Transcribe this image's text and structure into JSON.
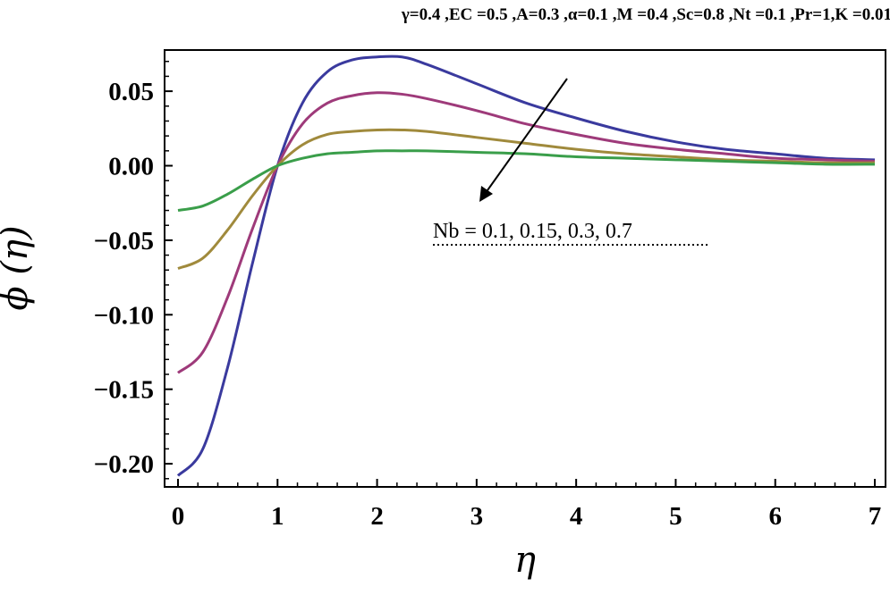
{
  "chart_data": {
    "type": "line",
    "title": "γ=0.4 ,EC =0.5 ,A=0.3 ,α=0.1 ,M =0.4 ,Sc=0.8 ,Nt =0.1 ,Pr=1,K =0.01",
    "xlabel": "η",
    "ylabel": "ϕ (η)",
    "xlim": [
      0,
      7
    ],
    "ylim": [
      -0.215,
      0.08
    ],
    "x_ticks": [
      "0",
      "1",
      "2",
      "3",
      "4",
      "5",
      "6",
      "7"
    ],
    "y_ticks": [
      "0.05",
      "0.00",
      "−0.05",
      "−0.10",
      "−0.15",
      "−0.20"
    ],
    "x_tick_values": [
      0,
      1,
      2,
      3,
      4,
      5,
      6,
      7
    ],
    "y_tick_values": [
      0.05,
      0.0,
      -0.05,
      -0.1,
      -0.15,
      -0.2
    ],
    "grid": false,
    "x": [
      0,
      0.25,
      0.5,
      0.75,
      1.0,
      1.25,
      1.5,
      1.75,
      2.0,
      2.25,
      2.5,
      3.0,
      3.5,
      4.0,
      4.5,
      5.0,
      5.5,
      6.0,
      6.5,
      7.0
    ],
    "series": [
      {
        "color": "#3a3a9e",
        "values": [
          -0.208,
          -0.19,
          -0.135,
          -0.065,
          0.0,
          0.042,
          0.063,
          0.071,
          0.073,
          0.073,
          0.068,
          0.055,
          0.042,
          0.032,
          0.023,
          0.016,
          0.011,
          0.008,
          0.005,
          0.004
        ]
      },
      {
        "color": "#9e3a7a",
        "values": [
          -0.139,
          -0.125,
          -0.088,
          -0.042,
          0.0,
          0.028,
          0.042,
          0.047,
          0.049,
          0.048,
          0.045,
          0.037,
          0.028,
          0.021,
          0.015,
          0.011,
          0.008,
          0.005,
          0.004,
          0.003
        ]
      },
      {
        "color": "#a08a3c",
        "values": [
          -0.069,
          -0.062,
          -0.043,
          -0.02,
          0.0,
          0.014,
          0.021,
          0.023,
          0.024,
          0.024,
          0.023,
          0.019,
          0.015,
          0.011,
          0.008,
          0.006,
          0.004,
          0.003,
          0.002,
          0.002
        ]
      },
      {
        "color": "#3a9e4a",
        "values": [
          -0.03,
          -0.027,
          -0.019,
          -0.009,
          0.0,
          0.005,
          0.008,
          0.009,
          0.01,
          0.01,
          0.01,
          0.009,
          0.008,
          0.006,
          0.005,
          0.004,
          0.003,
          0.002,
          0.001,
          0.001
        ]
      }
    ],
    "annotation": {
      "text": "Nb = 0.1, 0.15, 0.3, 0.7",
      "arrow_from": [
        3.9,
        0.06
      ],
      "arrow_to": [
        3.0,
        -0.025
      ],
      "text_at": [
        2.5,
        -0.038
      ]
    }
  }
}
